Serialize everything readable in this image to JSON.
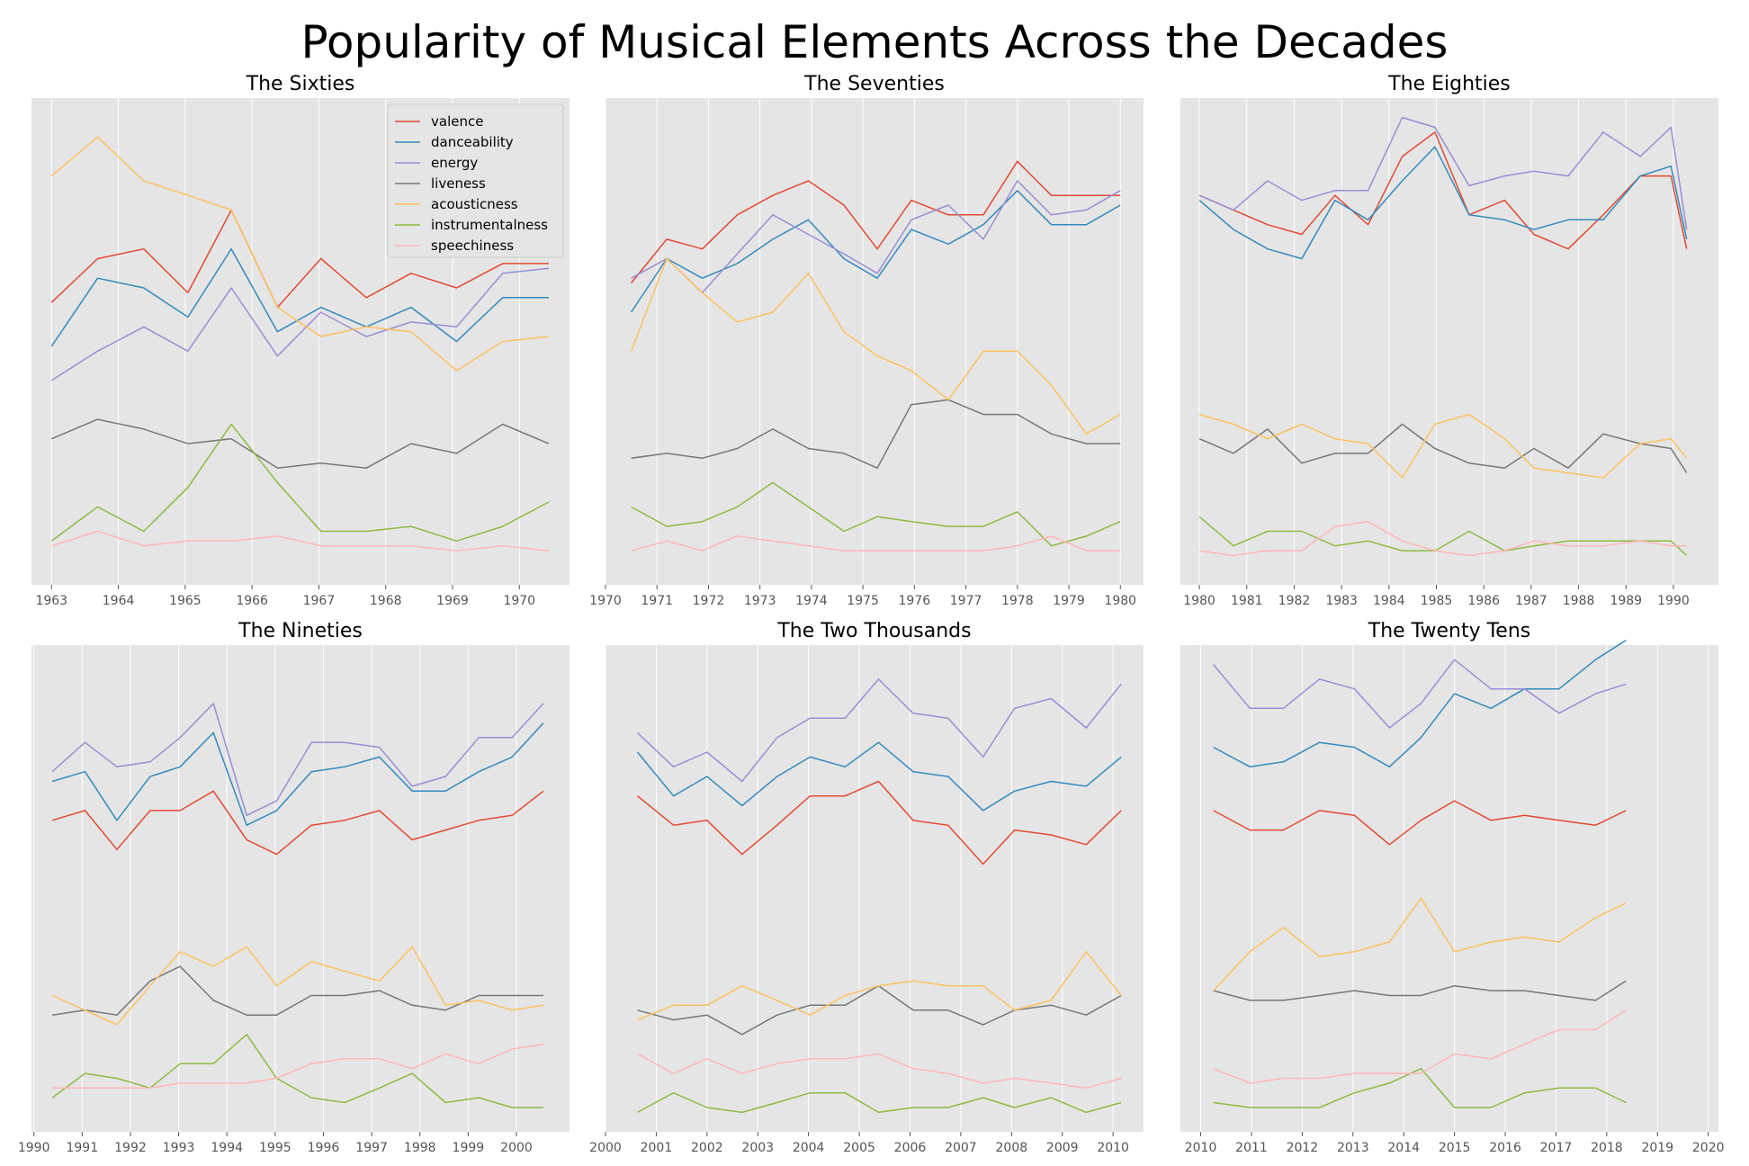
{
  "suptitle": "Popularity of Musical Elements Across the Decades",
  "colors": {
    "valence": "#E24A33",
    "danceability": "#348ABD",
    "energy": "#988ED5",
    "liveness": "#777777",
    "acousticness": "#FBC15E",
    "instrumentalness": "#8EBA42",
    "speechiness": "#FFB5B8"
  },
  "style": {
    "panel_bg": "#E5E5E5",
    "grid": "#FFFFFF",
    "legend_panel": 0
  },
  "chart_data": [
    {
      "type": "line",
      "title": "The Sixties",
      "xlim": [
        1962.7,
        1970.75
      ],
      "ylim": [
        0,
        1
      ],
      "xticks": [
        "1963",
        "1964",
        "1965",
        "1966",
        "1967",
        "1968",
        "1969",
        "1970"
      ],
      "xtick_values": [
        1963,
        1964,
        1965,
        1966,
        1967,
        1968,
        1969,
        1970
      ],
      "x": [
        1963.0,
        1963.69,
        1964.38,
        1965.04,
        1965.69,
        1966.38,
        1967.03,
        1967.71,
        1968.38,
        1969.06,
        1969.75,
        1970.44
      ],
      "series": [
        {
          "name": "valence",
          "values": [
            0.58,
            0.67,
            0.69,
            0.6,
            0.77,
            0.57,
            0.67,
            0.59,
            0.64,
            0.61,
            0.66,
            0.66
          ]
        },
        {
          "name": "danceability",
          "values": [
            0.49,
            0.63,
            0.61,
            0.55,
            0.69,
            0.52,
            0.57,
            0.53,
            0.57,
            0.5,
            0.59,
            0.59
          ]
        },
        {
          "name": "energy",
          "values": [
            0.42,
            0.48,
            0.53,
            0.48,
            0.61,
            0.47,
            0.56,
            0.51,
            0.54,
            0.53,
            0.64,
            0.65
          ]
        },
        {
          "name": "liveness",
          "values": [
            0.3,
            0.34,
            0.32,
            0.29,
            0.3,
            0.24,
            0.25,
            0.24,
            0.29,
            0.27,
            0.33,
            0.29
          ]
        },
        {
          "name": "acousticness",
          "values": [
            0.84,
            0.92,
            0.83,
            0.8,
            0.77,
            0.57,
            0.51,
            0.53,
            0.52,
            0.44,
            0.5,
            0.51
          ]
        },
        {
          "name": "instrumentalness",
          "values": [
            0.09,
            0.16,
            0.11,
            0.2,
            0.33,
            0.21,
            0.11,
            0.11,
            0.12,
            0.09,
            0.12,
            0.17
          ]
        },
        {
          "name": "speechiness",
          "values": [
            0.08,
            0.11,
            0.08,
            0.09,
            0.09,
            0.1,
            0.08,
            0.08,
            0.08,
            0.07,
            0.08,
            0.07
          ]
        }
      ]
    },
    {
      "type": "line",
      "title": "The Seventies",
      "xlim": [
        1970.0,
        1980.45
      ],
      "ylim": [
        0,
        1
      ],
      "xticks": [
        "1970",
        "1971",
        "1972",
        "1973",
        "1974",
        "1975",
        "1976",
        "1977",
        "1978",
        "1979",
        "1980"
      ],
      "xtick_values": [
        1970,
        1971,
        1972,
        1973,
        1974,
        1975,
        1976,
        1977,
        1978,
        1979,
        1980
      ],
      "x": [
        1970.5,
        1971.19,
        1971.88,
        1972.56,
        1973.25,
        1973.94,
        1974.63,
        1975.28,
        1975.94,
        1976.66,
        1977.34,
        1978.0,
        1978.66,
        1979.34,
        1980.0
      ],
      "series": [
        {
          "name": "valence",
          "values": [
            0.62,
            0.71,
            0.69,
            0.76,
            0.8,
            0.83,
            0.78,
            0.69,
            0.79,
            0.76,
            0.76,
            0.87,
            0.8,
            0.8,
            0.8
          ]
        },
        {
          "name": "danceability",
          "values": [
            0.56,
            0.67,
            0.63,
            0.66,
            0.71,
            0.75,
            0.67,
            0.63,
            0.73,
            0.7,
            0.74,
            0.81,
            0.74,
            0.74,
            0.78
          ]
        },
        {
          "name": "energy",
          "values": [
            0.63,
            0.67,
            0.6,
            0.68,
            0.76,
            0.72,
            0.68,
            0.64,
            0.75,
            0.78,
            0.71,
            0.83,
            0.76,
            0.77,
            0.81
          ]
        },
        {
          "name": "liveness",
          "values": [
            0.26,
            0.27,
            0.26,
            0.28,
            0.32,
            0.28,
            0.27,
            0.24,
            0.37,
            0.38,
            0.35,
            0.35,
            0.31,
            0.29,
            0.29
          ]
        },
        {
          "name": "acousticness",
          "values": [
            0.48,
            0.67,
            0.6,
            0.54,
            0.56,
            0.64,
            0.52,
            0.47,
            0.44,
            0.38,
            0.48,
            0.48,
            0.41,
            0.31,
            0.35
          ]
        },
        {
          "name": "instrumentalness",
          "values": [
            0.16,
            0.12,
            0.13,
            0.16,
            0.21,
            0.16,
            0.11,
            0.14,
            0.13,
            0.12,
            0.12,
            0.15,
            0.08,
            0.1,
            0.13
          ]
        },
        {
          "name": "speechiness",
          "values": [
            0.07,
            0.09,
            0.07,
            0.1,
            0.09,
            0.08,
            0.07,
            0.07,
            0.07,
            0.07,
            0.07,
            0.08,
            0.1,
            0.07,
            0.07
          ]
        }
      ]
    },
    {
      "type": "line",
      "title": "The Eighties",
      "xlim": [
        1979.6,
        1990.95
      ],
      "ylim": [
        0,
        1
      ],
      "xticks": [
        "1980",
        "1981",
        "1982",
        "1983",
        "1984",
        "1985",
        "1986",
        "1987",
        "1988",
        "1989",
        "1990"
      ],
      "xtick_values": [
        1980,
        1981,
        1982,
        1983,
        1984,
        1985,
        1986,
        1987,
        1988,
        1989,
        1990
      ],
      "x": [
        1980.0,
        1980.72,
        1981.44,
        1982.16,
        1982.86,
        1983.56,
        1984.28,
        1984.97,
        1985.69,
        1986.44,
        1987.06,
        1987.78,
        1988.52,
        1989.3,
        1989.95,
        1990.28
      ],
      "series": [
        {
          "name": "valence",
          "values": [
            0.8,
            0.77,
            0.74,
            0.72,
            0.8,
            0.74,
            0.88,
            0.93,
            0.76,
            0.79,
            0.72,
            0.69,
            0.76,
            0.84,
            0.84,
            0.69
          ]
        },
        {
          "name": "danceability",
          "values": [
            0.79,
            0.73,
            0.69,
            0.67,
            0.79,
            0.75,
            0.83,
            0.9,
            0.76,
            0.75,
            0.73,
            0.75,
            0.75,
            0.84,
            0.86,
            0.71
          ]
        },
        {
          "name": "energy",
          "values": [
            0.8,
            0.77,
            0.83,
            0.79,
            0.81,
            0.81,
            0.96,
            0.94,
            0.82,
            0.84,
            0.85,
            0.84,
            0.93,
            0.88,
            0.94,
            0.73
          ]
        },
        {
          "name": "liveness",
          "values": [
            0.3,
            0.27,
            0.32,
            0.25,
            0.27,
            0.27,
            0.33,
            0.28,
            0.25,
            0.24,
            0.28,
            0.24,
            0.31,
            0.29,
            0.28,
            0.23
          ]
        },
        {
          "name": "acousticness",
          "values": [
            0.35,
            0.33,
            0.3,
            0.33,
            0.3,
            0.29,
            0.22,
            0.33,
            0.35,
            0.3,
            0.24,
            0.23,
            0.22,
            0.29,
            0.3,
            0.26
          ]
        },
        {
          "name": "instrumentalness",
          "values": [
            0.14,
            0.08,
            0.11,
            0.11,
            0.08,
            0.09,
            0.07,
            0.07,
            0.11,
            0.07,
            0.08,
            0.09,
            0.09,
            0.09,
            0.09,
            0.06
          ]
        },
        {
          "name": "speechiness",
          "values": [
            0.07,
            0.06,
            0.07,
            0.07,
            0.12,
            0.13,
            0.09,
            0.07,
            0.06,
            0.07,
            0.09,
            0.08,
            0.08,
            0.09,
            0.08,
            0.08
          ]
        }
      ]
    },
    {
      "type": "line",
      "title": "The Nineties",
      "xlim": [
        1989.95,
        2001.1
      ],
      "ylim": [
        0,
        1
      ],
      "xticks": [
        "1990",
        "1991",
        "1992",
        "1993",
        "1994",
        "1995",
        "1996",
        "1997",
        "1998",
        "1999",
        "2000"
      ],
      "xtick_values": [
        1990,
        1991,
        1992,
        1993,
        1994,
        1995,
        1996,
        1997,
        1998,
        1999,
        2000
      ],
      "x": [
        1990.38,
        1991.06,
        1991.72,
        1992.41,
        1993.03,
        1993.72,
        1994.41,
        1995.03,
        1995.75,
        1996.44,
        1997.16,
        1997.84,
        1998.53,
        1999.22,
        1999.91,
        2000.56
      ],
      "series": [
        {
          "name": "valence",
          "values": [
            0.64,
            0.66,
            0.58,
            0.66,
            0.66,
            0.7,
            0.6,
            0.57,
            0.63,
            0.64,
            0.66,
            0.6,
            0.62,
            0.64,
            0.65,
            0.7
          ]
        },
        {
          "name": "danceability",
          "values": [
            0.72,
            0.74,
            0.64,
            0.73,
            0.75,
            0.82,
            0.63,
            0.66,
            0.74,
            0.75,
            0.77,
            0.7,
            0.7,
            0.74,
            0.77,
            0.84
          ]
        },
        {
          "name": "energy",
          "values": [
            0.74,
            0.8,
            0.75,
            0.76,
            0.81,
            0.88,
            0.65,
            0.68,
            0.8,
            0.8,
            0.79,
            0.71,
            0.73,
            0.81,
            0.81,
            0.88
          ]
        },
        {
          "name": "liveness",
          "values": [
            0.24,
            0.25,
            0.24,
            0.31,
            0.34,
            0.27,
            0.24,
            0.24,
            0.28,
            0.28,
            0.29,
            0.26,
            0.25,
            0.28,
            0.28,
            0.28
          ]
        },
        {
          "name": "acousticness",
          "values": [
            0.28,
            0.25,
            0.22,
            0.3,
            0.37,
            0.34,
            0.38,
            0.3,
            0.35,
            0.33,
            0.31,
            0.38,
            0.26,
            0.27,
            0.25,
            0.26
          ]
        },
        {
          "name": "instrumentalness",
          "values": [
            0.07,
            0.12,
            0.11,
            0.09,
            0.14,
            0.14,
            0.2,
            0.11,
            0.07,
            0.06,
            0.09,
            0.12,
            0.06,
            0.07,
            0.05,
            0.05
          ]
        },
        {
          "name": "speechiness",
          "values": [
            0.09,
            0.09,
            0.09,
            0.09,
            0.1,
            0.1,
            0.1,
            0.11,
            0.14,
            0.15,
            0.15,
            0.13,
            0.16,
            0.14,
            0.17,
            0.18
          ]
        }
      ]
    },
    {
      "type": "line",
      "title": "The Two Thousands",
      "xlim": [
        2000.0,
        2010.6
      ],
      "ylim": [
        0,
        1
      ],
      "xticks": [
        "2000",
        "2001",
        "2002",
        "2003",
        "2004",
        "2005",
        "2006",
        "2007",
        "2008",
        "2009",
        "2010"
      ],
      "xtick_values": [
        2000,
        2001,
        2002,
        2003,
        2004,
        2005,
        2006,
        2007,
        2008,
        2009,
        2010
      ],
      "x": [
        2000.63,
        2001.34,
        2002.0,
        2002.69,
        2003.38,
        2004.03,
        2004.72,
        2005.38,
        2006.06,
        2006.75,
        2007.44,
        2008.06,
        2008.78,
        2009.47,
        2010.16
      ],
      "series": [
        {
          "name": "valence",
          "values": [
            0.69,
            0.63,
            0.64,
            0.57,
            0.63,
            0.69,
            0.69,
            0.72,
            0.64,
            0.63,
            0.55,
            0.62,
            0.61,
            0.59,
            0.66
          ]
        },
        {
          "name": "danceability",
          "values": [
            0.78,
            0.69,
            0.73,
            0.67,
            0.73,
            0.77,
            0.75,
            0.8,
            0.74,
            0.73,
            0.66,
            0.7,
            0.72,
            0.71,
            0.77
          ]
        },
        {
          "name": "energy",
          "values": [
            0.82,
            0.75,
            0.78,
            0.72,
            0.81,
            0.85,
            0.85,
            0.93,
            0.86,
            0.85,
            0.77,
            0.87,
            0.89,
            0.83,
            0.92
          ]
        },
        {
          "name": "liveness",
          "values": [
            0.25,
            0.23,
            0.24,
            0.2,
            0.24,
            0.26,
            0.26,
            0.3,
            0.25,
            0.25,
            0.22,
            0.25,
            0.26,
            0.24,
            0.28
          ]
        },
        {
          "name": "acousticness",
          "values": [
            0.23,
            0.26,
            0.26,
            0.3,
            0.27,
            0.24,
            0.28,
            0.3,
            0.31,
            0.3,
            0.3,
            0.25,
            0.27,
            0.37,
            0.28
          ]
        },
        {
          "name": "instrumentalness",
          "values": [
            0.04,
            0.08,
            0.05,
            0.04,
            0.06,
            0.08,
            0.08,
            0.04,
            0.05,
            0.05,
            0.07,
            0.05,
            0.07,
            0.04,
            0.06
          ]
        },
        {
          "name": "speechiness",
          "values": [
            0.16,
            0.12,
            0.15,
            0.12,
            0.14,
            0.15,
            0.15,
            0.16,
            0.13,
            0.12,
            0.1,
            0.11,
            0.1,
            0.09,
            0.11
          ]
        }
      ]
    },
    {
      "type": "line",
      "title": "The Twenty Tens",
      "xlim": [
        2009.6,
        2020.2
      ],
      "ylim": [
        0,
        1
      ],
      "xticks": [
        "2010",
        "2011",
        "2012",
        "2013",
        "2014",
        "2015",
        "2016",
        "2017",
        "2018",
        "2019",
        "2020"
      ],
      "xtick_values": [
        2010,
        2011,
        2012,
        2013,
        2014,
        2015,
        2016,
        2017,
        2018,
        2019,
        2020
      ],
      "x": [
        2010.25,
        2010.97,
        2011.63,
        2012.34,
        2013.03,
        2013.72,
        2014.34,
        2015.0,
        2015.72,
        2016.38,
        2017.06,
        2017.78,
        2018.38
      ],
      "series": [
        {
          "name": "valence",
          "values": [
            0.66,
            0.62,
            0.62,
            0.66,
            0.65,
            0.59,
            0.64,
            0.68,
            0.64,
            0.65,
            0.64,
            0.63,
            0.66
          ]
        },
        {
          "name": "danceability",
          "values": [
            0.79,
            0.75,
            0.76,
            0.8,
            0.79,
            0.75,
            0.81,
            0.9,
            0.87,
            0.91,
            0.91,
            0.97,
            1.01
          ]
        },
        {
          "name": "energy",
          "values": [
            0.96,
            0.87,
            0.87,
            0.93,
            0.91,
            0.83,
            0.88,
            0.97,
            0.91,
            0.91,
            0.86,
            0.9,
            0.92
          ]
        },
        {
          "name": "liveness",
          "values": [
            0.29,
            0.27,
            0.27,
            0.28,
            0.29,
            0.28,
            0.28,
            0.3,
            0.29,
            0.29,
            0.28,
            0.27,
            0.31
          ]
        },
        {
          "name": "acousticness",
          "values": [
            0.29,
            0.37,
            0.42,
            0.36,
            0.37,
            0.39,
            0.48,
            0.37,
            0.39,
            0.4,
            0.39,
            0.44,
            0.47
          ]
        },
        {
          "name": "instrumentalness",
          "values": [
            0.06,
            0.05,
            0.05,
            0.05,
            0.08,
            0.1,
            0.13,
            0.05,
            0.05,
            0.08,
            0.09,
            0.09,
            0.06
          ]
        },
        {
          "name": "speechiness",
          "values": [
            0.13,
            0.1,
            0.11,
            0.11,
            0.12,
            0.12,
            0.12,
            0.16,
            0.15,
            0.18,
            0.21,
            0.21,
            0.25
          ]
        }
      ]
    }
  ]
}
